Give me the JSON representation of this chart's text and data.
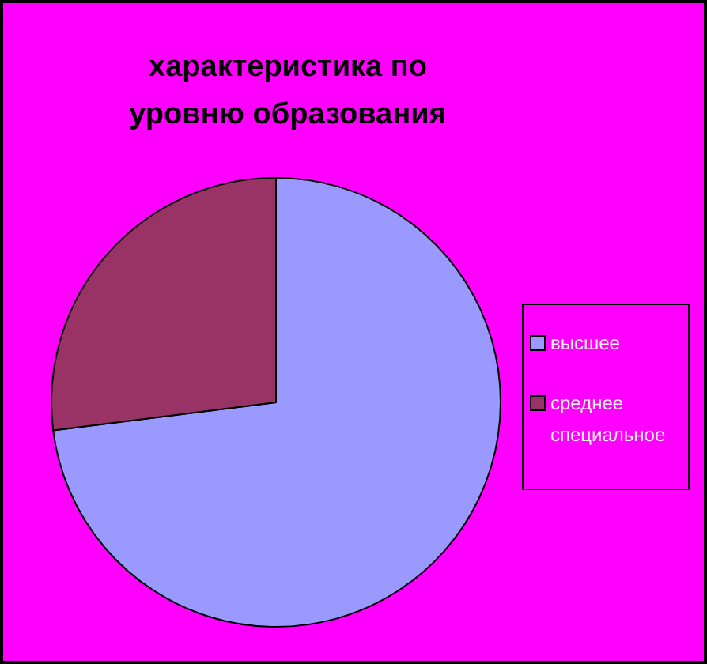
{
  "chart_data": {
    "type": "pie",
    "title": "характеристика по уровню образования",
    "categories": [
      "высшее",
      "среднее специальное"
    ],
    "values": [
      73,
      27
    ],
    "colors": [
      "#9999ff",
      "#993366"
    ],
    "legend": "right"
  }
}
